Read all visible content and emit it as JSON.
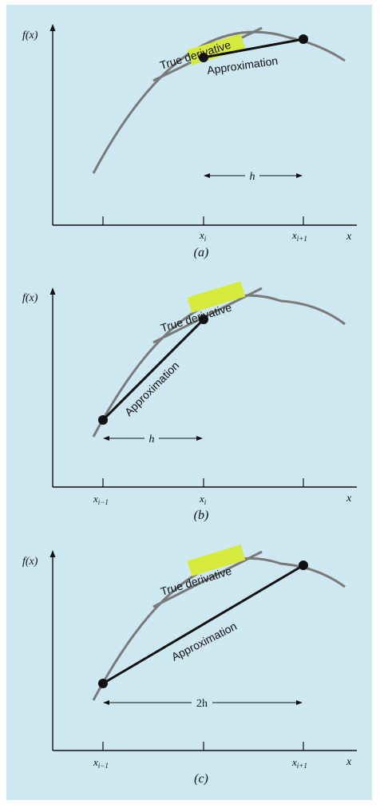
{
  "colors": {
    "background": "#cde8f1",
    "curve": "#7a7a7a",
    "tangent": "#7a7a7a",
    "approximation": "#111111",
    "highlight": "#d6ea3b",
    "axis": "#111111"
  },
  "panels": [
    {
      "id": "a",
      "caption": "(a)",
      "ylabel": "f(x)",
      "xlabel": "x",
      "tick_labels": [
        {
          "base": "",
          "sub": ""
        },
        {
          "base": "x",
          "sub": "i"
        },
        {
          "base": "x",
          "sub": "i+1"
        }
      ],
      "true_word": "True",
      "derivative_word": "derivative",
      "approx_label": "Approximation",
      "h_label": "h"
    },
    {
      "id": "b",
      "caption": "(b)",
      "ylabel": "f(x)",
      "xlabel": "x",
      "tick_labels": [
        {
          "base": "x",
          "sub": "i−1"
        },
        {
          "base": "x",
          "sub": "i"
        },
        {
          "base": "",
          "sub": ""
        }
      ],
      "true_word": "True",
      "derivative_word": "derivative",
      "approx_label": "Approximation",
      "h_label": "h"
    },
    {
      "id": "c",
      "caption": "(c)",
      "ylabel": "f(x)",
      "xlabel": "x",
      "tick_labels": [
        {
          "base": "x",
          "sub": "i−1"
        },
        {
          "base": "",
          "sub": ""
        },
        {
          "base": "x",
          "sub": "i+1"
        }
      ],
      "true_word": "True",
      "derivative_word": "derivative",
      "approx_label": "Approximation",
      "h_label": "2h"
    }
  ]
}
